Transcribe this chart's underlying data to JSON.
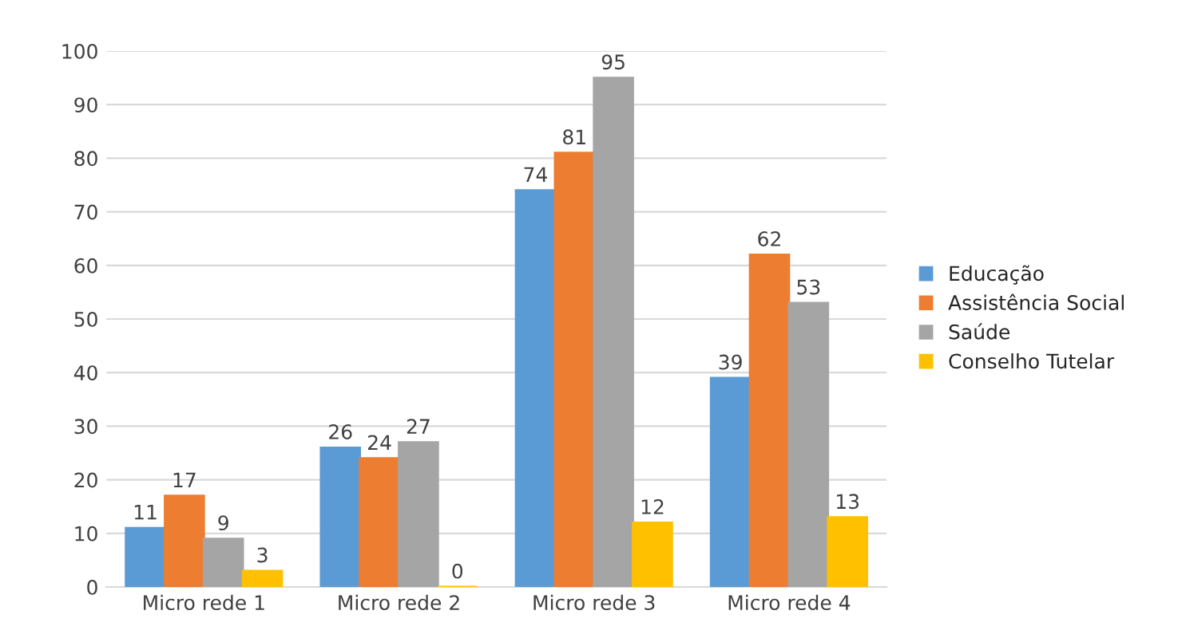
{
  "chart_data": {
    "type": "bar",
    "categories": [
      "Micro rede 1",
      "Micro rede 2",
      "Micro rede 3",
      "Micro rede 4"
    ],
    "series": [
      {
        "name": "Educação",
        "color": "#5b9bd5",
        "values": [
          11,
          26,
          74,
          39
        ]
      },
      {
        "name": "Assistência Social",
        "color": "#ed7d31",
        "values": [
          17,
          24,
          81,
          62
        ]
      },
      {
        "name": "Saúde",
        "color": "#a5a5a5",
        "values": [
          9,
          27,
          95,
          53
        ]
      },
      {
        "name": "Conselho Tutelar",
        "color": "#ffc000",
        "values": [
          3,
          0,
          12,
          13
        ]
      }
    ],
    "ylim": [
      0,
      100
    ],
    "yticks": [
      0,
      10,
      20,
      30,
      40,
      50,
      60,
      70,
      80,
      90,
      100
    ],
    "grid": "y",
    "legend": "right",
    "data_labels": true
  }
}
